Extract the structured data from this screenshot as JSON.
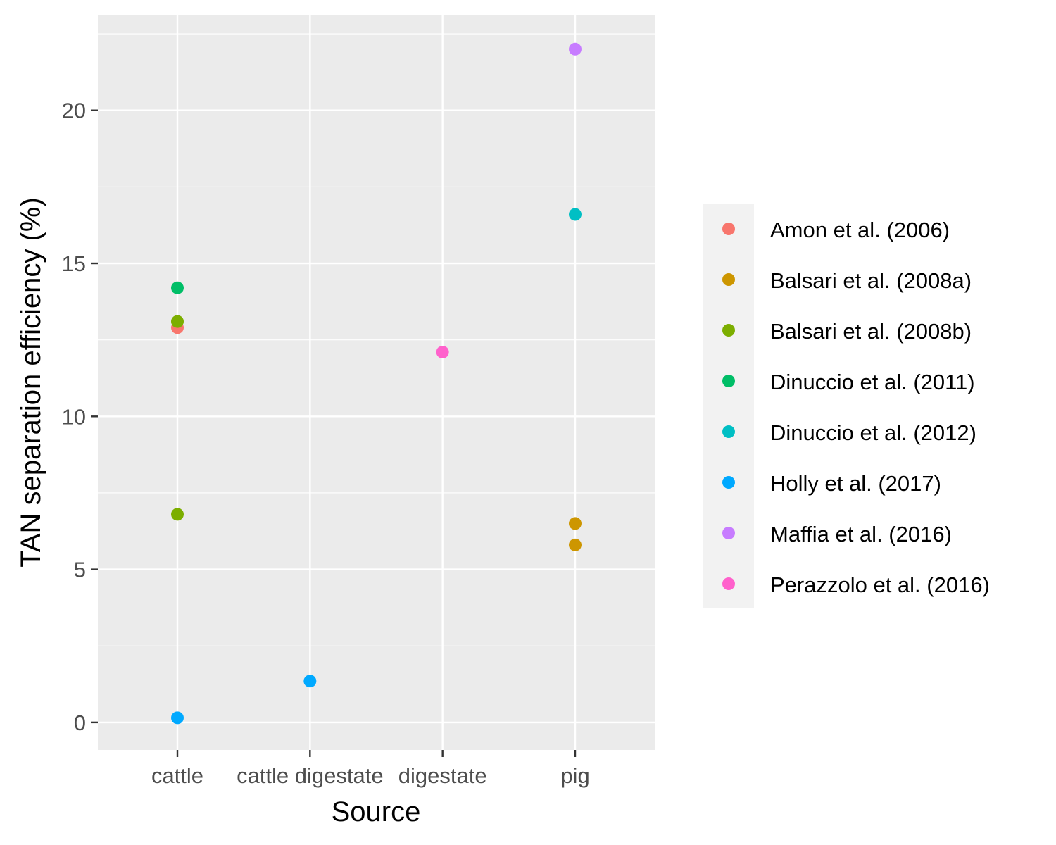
{
  "chart_data": {
    "type": "scatter",
    "xlabel": "Source",
    "ylabel": "TAN separation efficiency (%)",
    "categories": [
      "cattle",
      "cattle digestate",
      "digestate",
      "pig"
    ],
    "ylim": [
      -0.9,
      23.1
    ],
    "yticks": [
      0,
      5,
      10,
      15,
      20
    ],
    "ytick_labels": [
      "0",
      "5",
      "10",
      "15",
      "20"
    ],
    "grid": true,
    "legend_position": "right",
    "series": [
      {
        "name": "Amon et al. (2006)",
        "color": "#F8766D",
        "points": [
          {
            "x": "cattle",
            "y": 12.9
          }
        ]
      },
      {
        "name": "Balsari et al. (2008a)",
        "color": "#CD9600",
        "points": [
          {
            "x": "pig",
            "y": 6.5
          },
          {
            "x": "pig",
            "y": 5.8
          }
        ]
      },
      {
        "name": "Balsari et al. (2008b)",
        "color": "#7CAE00",
        "points": [
          {
            "x": "cattle",
            "y": 13.1
          },
          {
            "x": "cattle",
            "y": 6.8
          }
        ]
      },
      {
        "name": "Dinuccio et al. (2011)",
        "color": "#00BE67",
        "points": [
          {
            "x": "cattle",
            "y": 14.2
          }
        ]
      },
      {
        "name": "Dinuccio et al. (2012)",
        "color": "#00BFC4",
        "points": [
          {
            "x": "pig",
            "y": 16.6
          }
        ]
      },
      {
        "name": "Holly et al. (2017)",
        "color": "#00A9FF",
        "points": [
          {
            "x": "cattle",
            "y": 0.15
          },
          {
            "x": "cattle digestate",
            "y": 1.35
          }
        ]
      },
      {
        "name": "Maffia et al. (2016)",
        "color": "#C77CFF",
        "points": [
          {
            "x": "pig",
            "y": 22.0
          }
        ]
      },
      {
        "name": "Perazzolo et al. (2016)",
        "color": "#FF61CC",
        "points": [
          {
            "x": "digestate",
            "y": 12.1
          }
        ]
      }
    ]
  }
}
